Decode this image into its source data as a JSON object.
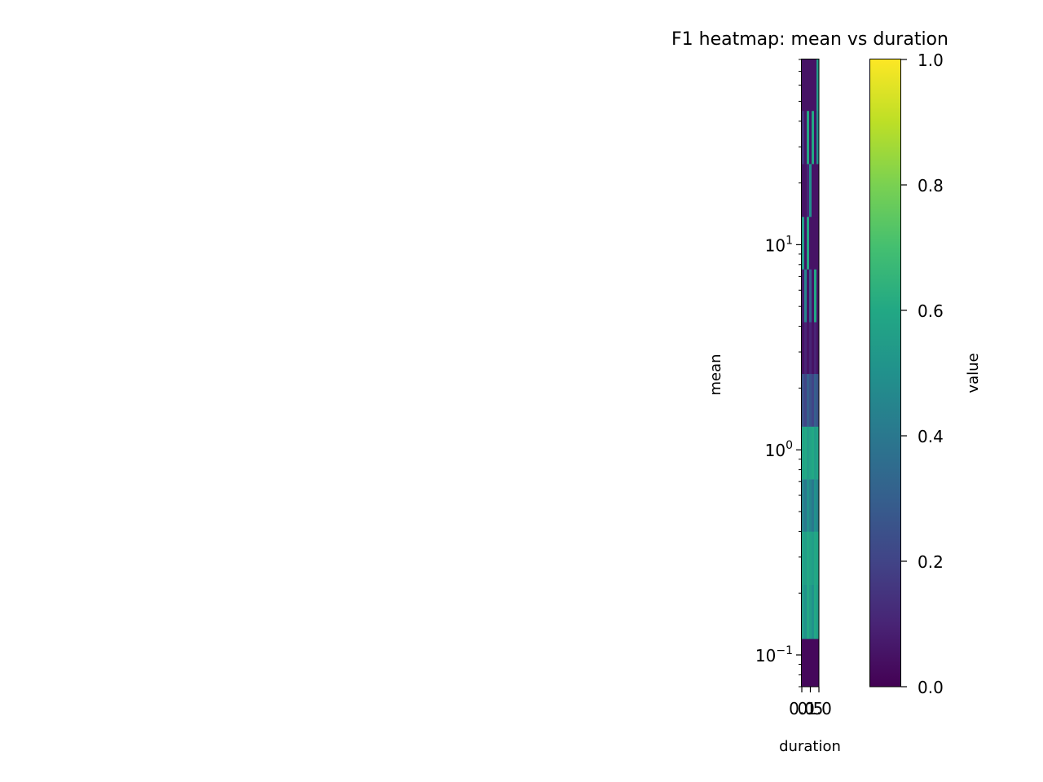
{
  "chart_data": {
    "type": "heatmap",
    "title": "F1 heatmap: mean vs duration",
    "xlabel": "duration",
    "ylabel": "mean",
    "yscale": "log",
    "x_ticks": [
      "0.0",
      "0.5",
      "1.0"
    ],
    "y_ticks": [
      {
        "base": "10",
        "exp": "1",
        "value": 10
      },
      {
        "base": "10",
        "exp": "0",
        "value": 1
      },
      {
        "base": "10",
        "exp": "−1",
        "value": 0.1
      }
    ],
    "ylim": [
      0.07,
      80
    ],
    "colorbar": {
      "label": "value",
      "range": [
        0,
        1
      ],
      "ticks": [
        "0.0",
        "0.2",
        "0.4",
        "0.6",
        "0.8",
        "1.0"
      ],
      "colormap": "viridis"
    },
    "mean_bins": [
      0.07,
      0.12,
      0.22,
      0.4,
      0.72,
      1.3,
      2.35,
      4.2,
      7.6,
      13.7,
      24.8,
      45,
      80
    ],
    "duration_cols": 7,
    "values": [
      [
        0.02,
        0.02,
        0.02,
        0.02,
        0.02,
        0.02,
        0.02
      ],
      [
        0.55,
        0.5,
        0.6,
        0.55,
        0.5,
        0.6,
        0.55
      ],
      [
        0.58,
        0.55,
        0.6,
        0.58,
        0.55,
        0.6,
        0.58
      ],
      [
        0.45,
        0.4,
        0.5,
        0.45,
        0.4,
        0.5,
        0.45
      ],
      [
        0.58,
        0.6,
        0.55,
        0.58,
        0.6,
        0.55,
        0.58
      ],
      [
        0.25,
        0.2,
        0.3,
        0.25,
        0.2,
        0.3,
        0.25
      ],
      [
        0.05,
        0.1,
        0.05,
        0.1,
        0.05,
        0.1,
        0.05
      ],
      [
        0.08,
        0.45,
        0.05,
        0.3,
        0.05,
        0.6,
        0.05
      ],
      [
        0.55,
        0.05,
        0.6,
        0.05,
        0.05,
        0.05,
        0.05
      ],
      [
        0.05,
        0.05,
        0.1,
        0.5,
        0.05,
        0.05,
        0.05
      ],
      [
        0.15,
        0.05,
        0.6,
        0.05,
        0.6,
        0.05,
        0.5
      ],
      [
        0.05,
        0.05,
        0.05,
        0.05,
        0.05,
        0.05,
        0.55
      ]
    ]
  }
}
